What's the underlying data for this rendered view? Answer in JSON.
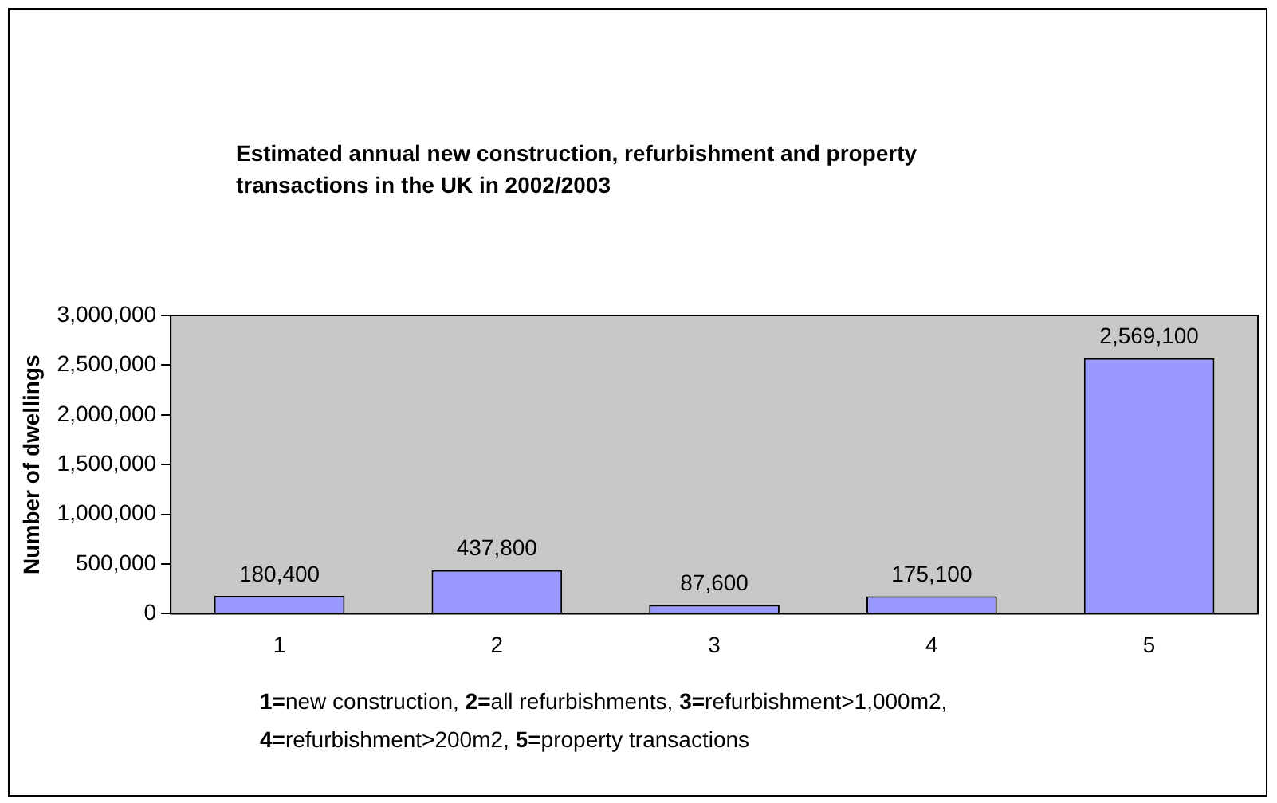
{
  "chart_data": {
    "type": "bar",
    "title": "Estimated annual new construction, refurbishment and property transactions in the UK in 2002/2003",
    "ylabel": "Number of dwellings",
    "categories": [
      "1",
      "2",
      "3",
      "4",
      "5"
    ],
    "values": [
      180400,
      437800,
      87600,
      175100,
      2569100
    ],
    "color": "#9999ff",
    "ylim": [
      0,
      3000000
    ],
    "yticks": [
      {
        "value": 0,
        "label": "0"
      },
      {
        "value": 500000,
        "label": "500,000"
      },
      {
        "value": 1000000,
        "label": "1,000,000"
      },
      {
        "value": 1500000,
        "label": "1,500,000"
      },
      {
        "value": 2000000,
        "label": "2,000,000"
      },
      {
        "value": 2500000,
        "label": "2,500,000"
      },
      {
        "value": 3000000,
        "label": "3,000,000"
      }
    ],
    "grid": false,
    "legend": false,
    "value_labels": [
      "180,400",
      "437,800",
      "87,600",
      "175,100",
      "2,569,100"
    ],
    "annotations": [
      "1=new construction, 2=all refurbishments, 3=refurbishment>1,000m2, 4=refurbishment>200m2, 5=property transactions"
    ]
  }
}
